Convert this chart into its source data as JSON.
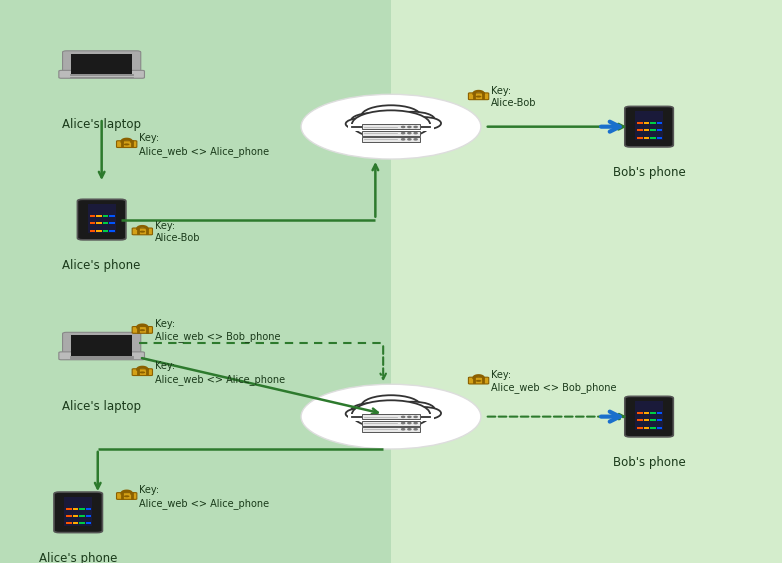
{
  "bg_left": "#b8ddb8",
  "bg_right": "#d4edcc",
  "text_color": "#1a3a1a",
  "green_solid": "#2d7a2d",
  "green_dashed": "#2d7a2d",
  "blue_arrow": "#1a6fcc",
  "top_panel": {
    "laptop_label": "Alice's laptop",
    "phone_label": "Alice's phone",
    "bobs_phone_label": "Bob's phone",
    "key_laptop_phone": "Key:\nAlice_web <> Alice_phone",
    "key_phone_server": "Key:\nAlice-Bob",
    "key_server_bob": "Key:\nAlice-Bob"
  },
  "bottom_panel": {
    "laptop_label": "Alice's laptop",
    "phone_label": "Alice's phone",
    "bobs_phone_label": "Bob's phone",
    "key_laptop_bob_dashed": "Key:\nAlice_web <> Bob_phone",
    "key_laptop_alice_solid": "Key:\nAlice_web <> Alice_phone",
    "key_server_bob_dashed": "Key:\nAlice_web <> Bob_phone",
    "key_server_alice_solid": "Key:\nAlice_web <> Alice_phone"
  },
  "lock_body_color": "#d4a017",
  "lock_edge_color": "#8b6000",
  "lock_shackle_color": "#8b6000"
}
